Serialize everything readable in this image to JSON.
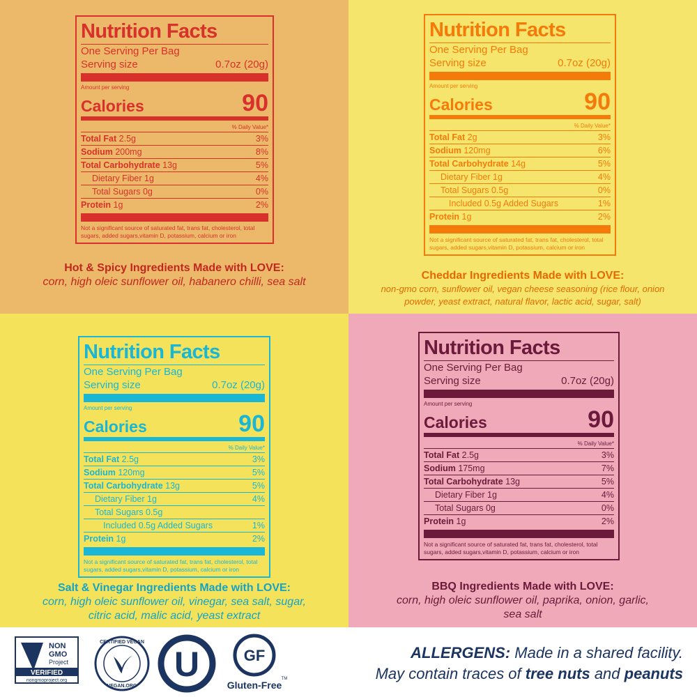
{
  "panels": [
    {
      "label": {
        "title": "Nutrition Facts",
        "servings": "One Serving Per Bag",
        "serving_size_label": "Serving size",
        "serving_size": "0.7oz (20g)",
        "amount_per_serving": "Amount per serving",
        "calories_label": "Calories",
        "calories": 90,
        "daily_value_header": "% Daily Value*",
        "nutrients": [
          {
            "name": "Total Fat",
            "amount": "2.5g",
            "dv": "3%"
          },
          {
            "name": "Sodium",
            "amount": "200mg",
            "dv": "8%"
          },
          {
            "name": "Total Carbohydrate",
            "amount": "13g",
            "dv": "5%",
            "sub": [
              {
                "name": "Dietary Fiber",
                "amount": "1g",
                "dv": "4%"
              },
              {
                "name": "Total Sugars",
                "amount": "0g",
                "dv": "0%"
              }
            ]
          },
          {
            "name": "Protein",
            "amount": "1g",
            "dv": "2%"
          }
        ],
        "footnote": "Not a significant source of saturated fat, trans fat, cholesterol, total sugars, added sugars,vitamin D, potassium, calcium or iron"
      },
      "ingredients_title": "Hot & Spicy Ingredients Made with LOVE:",
      "ingredients": "corn, high oleic sunflower oil, habanero chilli, sea salt"
    },
    {
      "label": {
        "title": "Nutrition Facts",
        "servings": "One Serving Per Bag",
        "serving_size_label": "Serving size",
        "serving_size": "0.7oz (20g)",
        "amount_per_serving": "Amount per serving",
        "calories_label": "Calories",
        "calories": 90,
        "daily_value_header": "% Daily Value*",
        "nutrients": [
          {
            "name": "Total Fat",
            "amount": "2g",
            "dv": "3%"
          },
          {
            "name": "Sodium",
            "amount": "120mg",
            "dv": "6%"
          },
          {
            "name": "Total Carbohydrate",
            "amount": "14g",
            "dv": "5%",
            "sub": [
              {
                "name": "Dietary Fiber",
                "amount": "1g",
                "dv": "4%"
              },
              {
                "name": "Total Sugars",
                "amount": "0.5g",
                "dv": "0%",
                "sub": [
                  {
                    "name": "Included 0.5g Added Sugars",
                    "dv": "1%"
                  }
                ]
              }
            ]
          },
          {
            "name": "Protein",
            "amount": "1g",
            "dv": "2%"
          }
        ],
        "footnote": "Not a significant source of saturated fat, trans fat, cholesterol, total sugars, added sugars,vitamin D, potassium, calcium or iron"
      },
      "ingredients_title": "Cheddar Ingredients Made with LOVE:",
      "ingredients": "non-gmo corn, sunflower oil, vegan cheese seasoning (rice flour, onion powder, yeast extract, natural flavor, lactic acid, sugar, salt)"
    },
    {
      "label": {
        "title": "Nutrition Facts",
        "servings": "One Serving Per Bag",
        "serving_size_label": "Serving size",
        "serving_size": "0.7oz (20g)",
        "amount_per_serving": "Amount per serving",
        "calories_label": "Calories",
        "calories": 90,
        "daily_value_header": "% Daily Value*",
        "nutrients": [
          {
            "name": "Total Fat",
            "amount": "2.5g",
            "dv": "3%"
          },
          {
            "name": "Sodium",
            "amount": "120mg",
            "dv": "5%"
          },
          {
            "name": "Total Carbohydrate",
            "amount": "13g",
            "dv": "5%",
            "sub": [
              {
                "name": "Dietary Fiber",
                "amount": "1g",
                "dv": "4%"
              },
              {
                "name": "Total Sugars",
                "amount": "0.5g",
                "sub": [
                  {
                    "name": "Included 0.5g Added Sugars",
                    "dv": "1%"
                  }
                ]
              }
            ]
          },
          {
            "name": "Protein",
            "amount": "1g",
            "dv": "2%"
          }
        ],
        "footnote": "Not a significant source of saturated fat, trans fat, cholesterol, total sugars, added sugars,vitamin D, potassium, calcium or iron"
      },
      "ingredients_title": "Salt & Vinegar Ingredients Made with LOVE:",
      "ingredients": "corn, high oleic sunflower oil, vinegar, sea salt, sugar, citric acid, malic acid, yeast extract"
    },
    {
      "label": {
        "title": "Nutrition Facts",
        "servings": "One Serving Per Bag",
        "serving_size_label": "Serving size",
        "serving_size": "0.7oz (20g)",
        "amount_per_serving": "Amount per serving",
        "calories_label": "Calories",
        "calories": 90,
        "daily_value_header": "% Daily Value*",
        "nutrients": [
          {
            "name": "Total Fat",
            "amount": "2.5g",
            "dv": "3%"
          },
          {
            "name": "Sodium",
            "amount": "175mg",
            "dv": "7%"
          },
          {
            "name": "Total Carbohydrate",
            "amount": "13g",
            "dv": "5%",
            "sub": [
              {
                "name": "Dietary Fiber",
                "amount": "1g",
                "dv": "4%"
              },
              {
                "name": "Total Sugars",
                "amount": "0g",
                "dv": "0%"
              }
            ]
          },
          {
            "name": "Protein",
            "amount": "1g",
            "dv": "2%"
          }
        ],
        "footnote": "Not a significant source of saturated fat, trans fat, cholesterol, total sugars, added sugars,vitamin D, potassium, calcium or iron"
      },
      "ingredients_title": "BBQ Ingredients Made with LOVE:",
      "ingredients": "corn, high oleic sunflower oil, paprika, onion, garlic, sea salt"
    }
  ],
  "badges": {
    "non_gmo": [
      "NON",
      "GMO",
      "Project",
      "VERIFIED",
      "nongmoproject.org"
    ],
    "vegan": [
      "CERTIFIED VEGAN",
      "VEGAN.ORG"
    ],
    "kosher": "U",
    "gluten_free": [
      "GF",
      "Gluten-Free",
      "TM"
    ]
  },
  "allergens": {
    "label": "ALLERGENS:",
    "line1": " Made in a shared facility.",
    "line2_start": "May contain traces of ",
    "item1": "tree nuts",
    "joiner": " and ",
    "item2": "peanuts"
  }
}
